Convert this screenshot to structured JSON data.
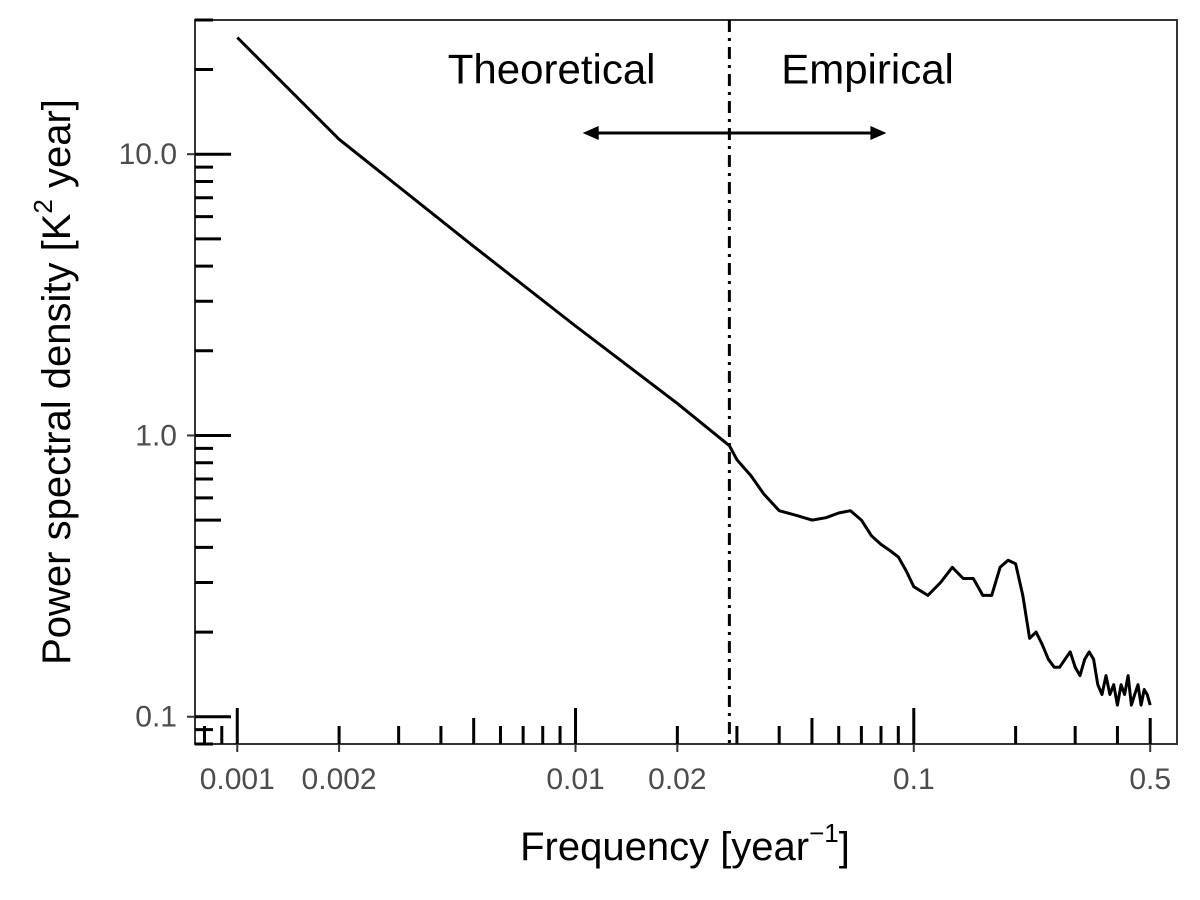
{
  "chart_data": {
    "type": "line",
    "title": "",
    "xlabel": "Frequency [year",
    "xlabel_sup": "−1",
    "xlabel_end": "]",
    "ylabel": "Power spectral density [K",
    "ylabel_sup": "2",
    "ylabel_end": " year]",
    "x_scale": "log",
    "y_scale": "log",
    "xlim": [
      0.00075,
      0.6
    ],
    "ylim": [
      0.08,
      30
    ],
    "grid": false,
    "legend": "none",
    "x_ticks": [
      {
        "value": 0.001,
        "label": "0.001"
      },
      {
        "value": 0.002,
        "label": "0.002"
      },
      {
        "value": 0.01,
        "label": "0.01"
      },
      {
        "value": 0.02,
        "label": "0.02"
      },
      {
        "value": 0.1,
        "label": "0.1"
      },
      {
        "value": 0.5,
        "label": "0.5"
      }
    ],
    "y_ticks": [
      {
        "value": 0.1,
        "label": "0.1"
      },
      {
        "value": 1.0,
        "label": "1.0"
      },
      {
        "value": 10.0,
        "label": "10.0"
      }
    ],
    "threshold": {
      "x": 0.0285,
      "style": "dotdash"
    },
    "annotations": [
      {
        "text": "Theoretical",
        "x": 0.0085,
        "y": 20
      },
      {
        "text": "Empirical",
        "x": 0.073,
        "y": 20
      }
    ],
    "arrow": {
      "x_from": 0.0105,
      "x_to": 0.083,
      "y": 11.9,
      "double_headed": true
    },
    "series": [
      {
        "x": [
          0.001,
          0.002,
          0.005,
          0.01,
          0.02,
          0.0285,
          0.03,
          0.033,
          0.036,
          0.04,
          0.045,
          0.05,
          0.055,
          0.06,
          0.065,
          0.07,
          0.075,
          0.08,
          0.085,
          0.09,
          0.095,
          0.1,
          0.11,
          0.12,
          0.13,
          0.14,
          0.15,
          0.16,
          0.17,
          0.18,
          0.19,
          0.2,
          0.21,
          0.22,
          0.23,
          0.24,
          0.25,
          0.26,
          0.27,
          0.28,
          0.29,
          0.3,
          0.31,
          0.32,
          0.33,
          0.34,
          0.35,
          0.36,
          0.37,
          0.38,
          0.39,
          0.4,
          0.41,
          0.42,
          0.43,
          0.44,
          0.45,
          0.46,
          0.47,
          0.48,
          0.49,
          0.5
        ],
        "values": [
          26,
          11.3,
          4.7,
          2.45,
          1.3,
          0.92,
          0.82,
          0.72,
          0.62,
          0.54,
          0.52,
          0.5,
          0.51,
          0.53,
          0.54,
          0.5,
          0.44,
          0.41,
          0.39,
          0.37,
          0.33,
          0.29,
          0.27,
          0.3,
          0.34,
          0.31,
          0.31,
          0.27,
          0.27,
          0.34,
          0.36,
          0.35,
          0.27,
          0.19,
          0.2,
          0.18,
          0.16,
          0.15,
          0.15,
          0.16,
          0.17,
          0.15,
          0.14,
          0.16,
          0.17,
          0.16,
          0.13,
          0.12,
          0.14,
          0.12,
          0.13,
          0.11,
          0.13,
          0.12,
          0.14,
          0.11,
          0.12,
          0.13,
          0.11,
          0.125,
          0.12,
          0.11
        ]
      }
    ]
  }
}
